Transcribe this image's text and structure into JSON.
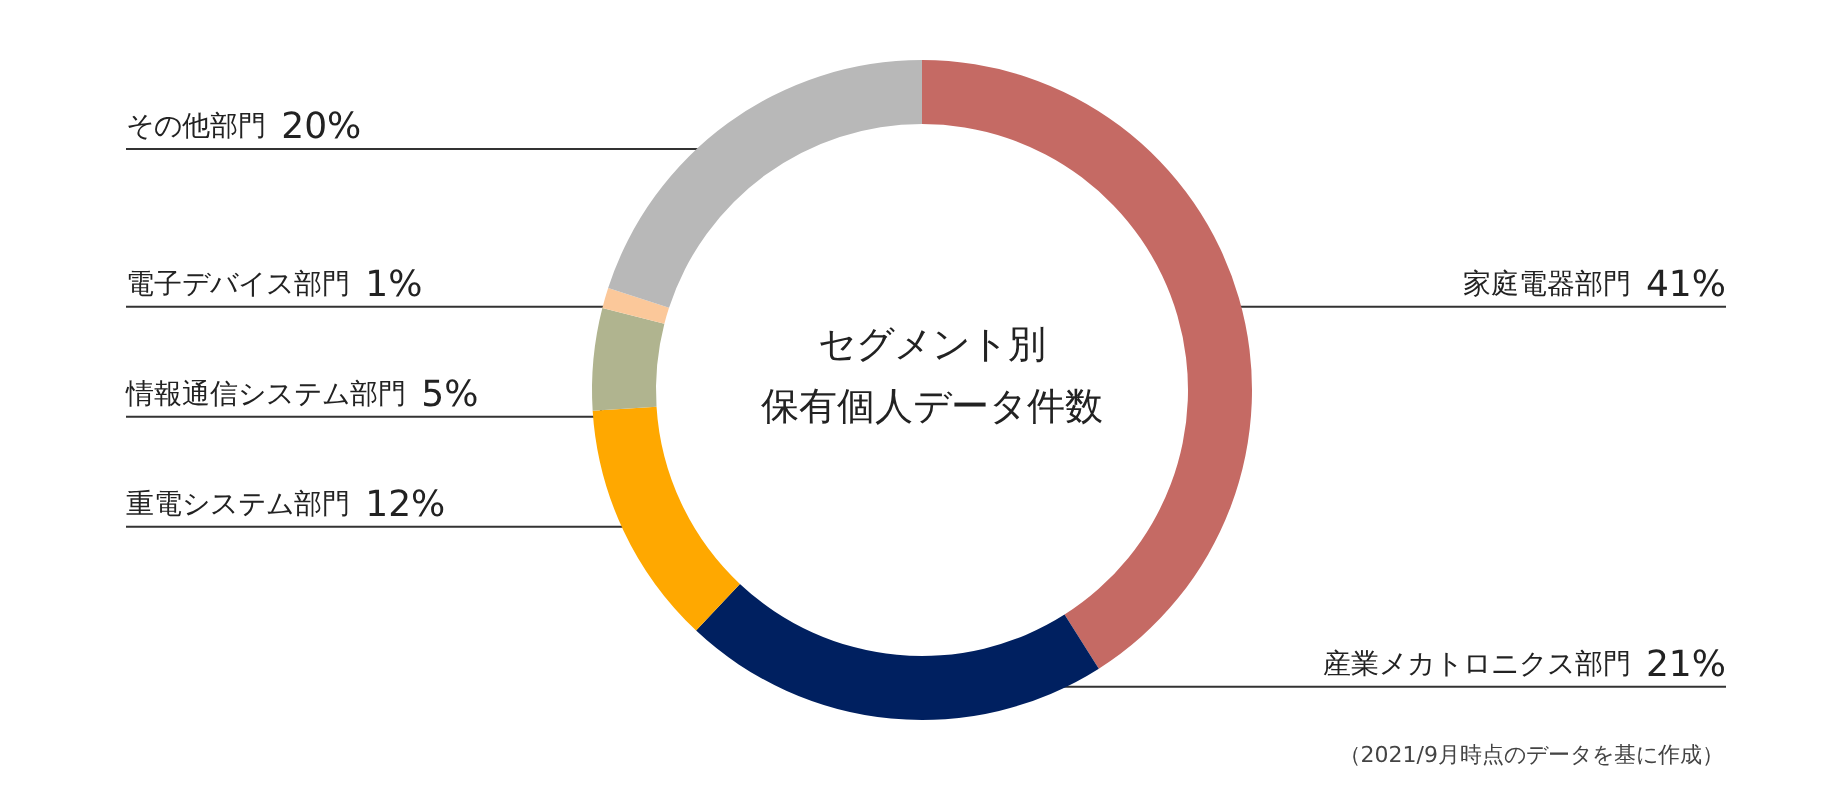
{
  "chart_data": {
    "type": "donut",
    "title": "セグメント別",
    "subtitle": "保有個人データ件数",
    "categories": [
      "家庭電器部門",
      "産業メカトロニクス部門",
      "重電システム部門",
      "情報通信システム部門",
      "電子デバイス部門",
      "その他部門"
    ],
    "values": [
      41,
      21,
      12,
      5,
      1,
      20
    ],
    "value_labels": [
      "41%",
      "21%",
      "12%",
      "5%",
      "1%",
      "20%"
    ],
    "colors": [
      "#c56a64",
      "#002060",
      "#ffa800",
      "#b0b48f",
      "#fbc89a",
      "#b8b8b8"
    ],
    "annotations": [
      "（2021/9月時点のデータを基に作成）"
    ],
    "legend": false
  }
}
